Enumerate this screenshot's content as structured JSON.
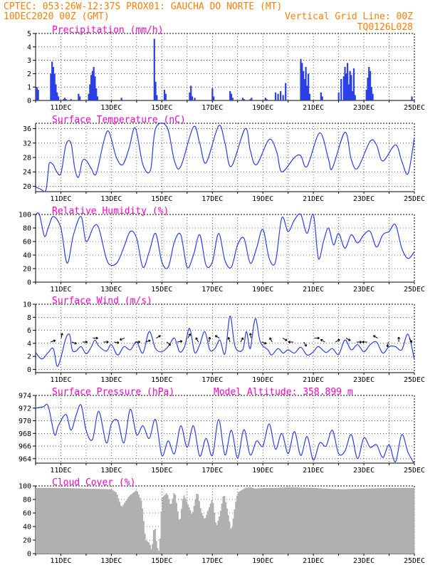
{
  "header": {
    "line1_left": "CPTEC:  053:26W-12:37S  PROX01: GAUCHA DO NORTE (MT)",
    "line2_left": "10DEC2020 00Z (GMT)",
    "line2_right": "Vertical Grid Line: 00Z",
    "line3_right": "TQ0126L028"
  },
  "colors": {
    "header": "#ff7f00",
    "panel_title": "#ff00c8",
    "series": "#2b3fe6",
    "cloud": "#b0b0b0",
    "grid": "#000000"
  },
  "date_labels": [
    "11DEC",
    "13DEC",
    "15DEC",
    "17DEC",
    "19DEC",
    "21DEC",
    "23DEC",
    "25DEC"
  ],
  "chart_data": [
    {
      "id": "precip",
      "type": "bar",
      "title": "Precipitation (mm/h)",
      "ylim": [
        0,
        5
      ],
      "yticks": [
        "0",
        "1",
        "2",
        "3",
        "4",
        "5"
      ],
      "x_units": "days since 10DEC2020 00Z",
      "x": [
        0.05,
        0.1,
        0.6,
        0.65,
        0.7,
        0.75,
        0.8,
        0.85,
        0.9,
        1.1,
        1.15,
        1.2,
        1.4,
        1.7,
        1.75,
        2.1,
        2.15,
        2.2,
        2.25,
        2.3,
        2.35,
        2.4,
        2.45,
        3.4,
        4.7,
        4.75,
        4.8,
        5.1,
        5.15,
        6.1,
        6.15,
        6.2,
        6.3,
        7.0,
        7.05,
        7.7,
        7.75,
        7.8,
        8.2,
        8.25,
        8.5,
        8.55,
        9.1,
        9.15,
        9.5,
        9.6,
        9.7,
        9.8,
        9.9,
        10.5,
        10.55,
        10.6,
        10.65,
        10.7,
        10.75,
        10.8,
        10.85,
        11.3,
        11.35,
        12.0,
        12.1,
        12.2,
        12.25,
        12.3,
        12.35,
        12.4,
        12.45,
        12.5,
        12.55,
        12.6,
        12.65,
        13.1,
        13.15,
        13.2,
        13.25,
        13.3,
        13.35,
        14.9
      ],
      "values": [
        1.0,
        0.8,
        2.0,
        2.9,
        2.5,
        2.0,
        1.2,
        0.6,
        0.3,
        0.1,
        0.2,
        0.1,
        0.1,
        0.5,
        0.3,
        0.5,
        1.2,
        1.9,
        2.2,
        2.5,
        1.8,
        0.9,
        0.3,
        0.2,
        4.6,
        1.4,
        0.4,
        0.8,
        0.5,
        0.6,
        1.1,
        0.3,
        0.2,
        0.9,
        0.3,
        0.7,
        0.5,
        0.2,
        0.2,
        0.1,
        0.1,
        0.2,
        0.2,
        0.1,
        0.6,
        0.5,
        0.7,
        0.4,
        1.3,
        3.1,
        2.8,
        2.2,
        1.6,
        2.5,
        1.1,
        2.0,
        0.5,
        0.6,
        0.3,
        0.6,
        1.6,
        1.8,
        2.5,
        2.0,
        2.8,
        1.2,
        2.2,
        1.9,
        0.7,
        2.4,
        0.4,
        0.8,
        1.7,
        2.5,
        2.2,
        1.0,
        0.5,
        0.3
      ]
    },
    {
      "id": "temp",
      "type": "line",
      "title": "Surface Temperature (nC)",
      "ylim": [
        18.5,
        37.5
      ],
      "yticks": [
        "20",
        "24",
        "28",
        "32",
        "36"
      ],
      "x": [
        0,
        0.2,
        0.4,
        0.5,
        0.55,
        0.7,
        0.8,
        1.0,
        1.2,
        1.4,
        1.55,
        1.7,
        1.85,
        2.0,
        2.2,
        2.4,
        2.7,
        2.9,
        3.2,
        3.45,
        3.7,
        3.95,
        4.25,
        4.55,
        4.75,
        5.2,
        5.5,
        5.75,
        6.25,
        6.5,
        6.75,
        7.25,
        7.5,
        7.75,
        8.3,
        8.5,
        8.75,
        9.25,
        9.55,
        9.75,
        10.25,
        10.5,
        10.75,
        11.25,
        11.6,
        11.75,
        12.25,
        12.5,
        12.75,
        13.25,
        13.5,
        13.75,
        14.25,
        14.5,
        14.75,
        15.0
      ],
      "values": [
        19.8,
        19.2,
        18.8,
        24,
        26.5,
        26,
        24.5,
        23.5,
        31.5,
        32,
        25,
        22.5,
        27,
        27.2,
        25,
        23.5,
        32.5,
        35.2,
        28,
        26,
        30.5,
        36.2,
        26,
        24.5,
        36,
        36.5,
        27,
        25.5,
        36.5,
        32,
        26.5,
        36.8,
        32,
        25.5,
        36,
        30,
        26,
        33,
        29.5,
        24,
        28,
        28.5,
        25.5,
        34.8,
        27.5,
        25,
        35,
        27.5,
        25,
        32.5,
        31.5,
        27,
        31.5,
        27,
        23.5,
        33.5
      ]
    },
    {
      "id": "rh",
      "type": "line",
      "title": "Relative Humidity (%)",
      "ylim": [
        0,
        100
      ],
      "yticks": [
        "0",
        "20",
        "40",
        "60",
        "80",
        "100"
      ],
      "x": [
        0,
        0.15,
        0.35,
        0.5,
        0.7,
        1.0,
        1.25,
        1.5,
        1.8,
        2.0,
        2.3,
        2.5,
        2.8,
        3.0,
        3.25,
        3.5,
        3.75,
        4.0,
        4.25,
        4.5,
        4.75,
        5.0,
        5.25,
        5.5,
        5.75,
        6.0,
        6.25,
        6.5,
        6.75,
        7.0,
        7.25,
        7.5,
        7.75,
        8.0,
        8.25,
        8.5,
        8.75,
        9.0,
        9.25,
        9.5,
        9.75,
        10.0,
        10.25,
        10.5,
        10.75,
        11.0,
        11.2,
        11.4,
        11.6,
        11.8,
        12.0,
        12.25,
        12.5,
        12.75,
        13.0,
        13.25,
        13.5,
        13.75,
        14.0,
        14.25,
        14.5,
        14.75,
        15.0
      ],
      "values": [
        100,
        100,
        68,
        80,
        97,
        80,
        28,
        70,
        97,
        60,
        82,
        80,
        35,
        25,
        30,
        52,
        75,
        65,
        22,
        45,
        72,
        30,
        22,
        60,
        70,
        22,
        40,
        70,
        25,
        30,
        72,
        32,
        22,
        55,
        65,
        28,
        50,
        78,
        35,
        30,
        95,
        75,
        92,
        100,
        72,
        100,
        35,
        60,
        80,
        55,
        72,
        50,
        70,
        58,
        70,
        75,
        52,
        70,
        75,
        85,
        50,
        35,
        45
      ]
    },
    {
      "id": "wind",
      "type": "line",
      "title": "Surface Wind (m/s)",
      "ylim": [
        -0.5,
        10
      ],
      "yticks": [
        "0",
        "2",
        "4",
        "6",
        "8",
        "10"
      ],
      "x": [
        0,
        0.25,
        0.5,
        0.7,
        0.85,
        1.0,
        1.2,
        1.35,
        1.45,
        1.6,
        1.8,
        2.0,
        2.2,
        2.35,
        2.5,
        2.8,
        3.0,
        3.25,
        3.5,
        3.75,
        4.0,
        4.25,
        4.5,
        4.75,
        5.0,
        5.25,
        5.5,
        5.7,
        5.9,
        6.1,
        6.3,
        6.5,
        6.7,
        6.9,
        7.1,
        7.3,
        7.5,
        7.7,
        7.9,
        8.2,
        8.35,
        8.5,
        8.7,
        8.9,
        9.2,
        9.35,
        9.6,
        9.8,
        10.0,
        10.25,
        10.5,
        10.75,
        11.0,
        11.2,
        11.5,
        11.75,
        12.0,
        12.25,
        12.5,
        12.75,
        13.0,
        13.25,
        13.5,
        13.75,
        14.0,
        14.25,
        14.5,
        14.75,
        15.0
      ],
      "values": [
        2.6,
        1.6,
        2.6,
        3.2,
        0.5,
        1.8,
        4.8,
        5.3,
        3.0,
        2.8,
        3.5,
        2.4,
        3.4,
        4.5,
        3.6,
        2.8,
        3.8,
        2.2,
        3.5,
        3.0,
        4.2,
        2.5,
        5.8,
        3.2,
        2.7,
        3.5,
        4.8,
        2.7,
        3.5,
        6.3,
        2.6,
        3.8,
        5.8,
        3.0,
        3.2,
        4.5,
        2.4,
        8.2,
        3.5,
        3.0,
        5.8,
        3.2,
        7.8,
        4.2,
        3.0,
        2.2,
        3.2,
        2.5,
        3.0,
        2.5,
        3.4,
        2.2,
        2.7,
        3.5,
        2.6,
        3.2,
        2.3,
        4.5,
        3.0,
        3.8,
        2.7,
        3.8,
        4.2,
        2.5,
        3.5,
        3.5,
        3.0,
        5.4,
        1.5
      ]
    },
    {
      "id": "press",
      "type": "line",
      "title": "Surface Pressure (hPa)",
      "annotation": "Model Altitude: 358.899 m",
      "ylim": [
        963.3,
        974
      ],
      "yticks": [
        "964",
        "966",
        "968",
        "970",
        "972",
        "974"
      ],
      "x": [
        0,
        0.3,
        0.5,
        0.75,
        0.9,
        1.2,
        1.4,
        1.6,
        1.8,
        2.0,
        2.25,
        2.5,
        2.8,
        3.0,
        3.25,
        3.5,
        3.75,
        4.0,
        4.25,
        4.5,
        4.75,
        5.0,
        5.25,
        5.5,
        5.75,
        6.0,
        6.25,
        6.5,
        6.75,
        7.0,
        7.25,
        7.5,
        7.75,
        8.0,
        8.25,
        8.5,
        8.75,
        9.0,
        9.25,
        9.5,
        9.75,
        10.0,
        10.25,
        10.5,
        10.75,
        11.0,
        11.25,
        11.5,
        11.75,
        12.0,
        12.25,
        12.5,
        12.75,
        13.0,
        13.25,
        13.5,
        13.75,
        14.0,
        14.25,
        14.5,
        14.75,
        15.0
      ],
      "values": [
        972,
        972.2,
        972.3,
        967.8,
        969.2,
        971,
        968.5,
        970.8,
        972.5,
        968.5,
        967,
        971.5,
        966.5,
        969.5,
        970,
        966.5,
        971.8,
        967.8,
        969.2,
        967.2,
        970.2,
        964.5,
        966.8,
        964.8,
        969.2,
        965.8,
        969.2,
        964.4,
        967.2,
        964.5,
        970.2,
        964.6,
        968.5,
        964.1,
        968.6,
        964.6,
        966.8,
        966,
        969.5,
        965.5,
        968,
        964.8,
        968.3,
        964.5,
        967.5,
        963.8,
        966.5,
        966,
        968.5,
        964.8,
        965.2,
        967.8,
        964,
        967.3,
        965.8,
        966.2,
        964.2,
        966.2,
        963.5,
        967.8,
        965,
        963.2
      ]
    },
    {
      "id": "cloud",
      "type": "area",
      "title": "Cloud Cover (%)",
      "ylim": [
        0,
        100
      ],
      "yticks": [
        "0",
        "20",
        "40",
        "60",
        "80",
        "100"
      ],
      "x": [
        0,
        1.0,
        2.0,
        3.0,
        3.2,
        3.4,
        3.7,
        4.0,
        4.2,
        4.35,
        4.5,
        4.6,
        4.7,
        4.8,
        4.9,
        5.0,
        5.2,
        5.35,
        5.5,
        5.7,
        5.85,
        6.0,
        6.2,
        6.4,
        6.55,
        6.7,
        6.85,
        7.0,
        7.15,
        7.3,
        7.45,
        7.6,
        7.75,
        7.9,
        8.0,
        8.3,
        8.5,
        8.7,
        9.0,
        9.5,
        10,
        11,
        12,
        13,
        14,
        15
      ],
      "values": [
        97,
        97,
        96,
        95,
        90,
        68,
        85,
        94,
        76,
        20,
        16,
        4,
        45,
        10,
        2,
        82,
        90,
        70,
        93,
        44,
        88,
        75,
        57,
        93,
        62,
        50,
        66,
        82,
        39,
        58,
        90,
        62,
        32,
        72,
        90,
        97,
        98,
        96,
        97,
        97,
        98,
        97,
        95,
        96,
        97,
        97
      ]
    }
  ]
}
